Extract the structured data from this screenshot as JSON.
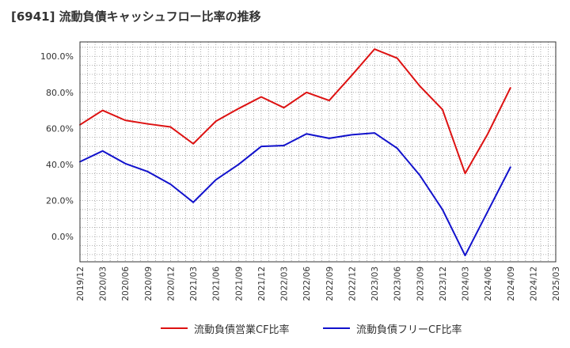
{
  "chart_data": {
    "type": "line",
    "title": "[6941]  流動負債キャッシュフロー比率の推移",
    "x": [
      "2019/12",
      "2020/03",
      "2020/06",
      "2020/09",
      "2020/12",
      "2021/03",
      "2021/06",
      "2021/09",
      "2021/12",
      "2022/03",
      "2022/06",
      "2022/09",
      "2022/12",
      "2023/03",
      "2023/06",
      "2023/09",
      "2023/12",
      "2024/03",
      "2024/06",
      "2024/09",
      "2024/12",
      "2025/03"
    ],
    "y_ticks": [
      "100.0%",
      "80.0%",
      "60.0%",
      "40.0%",
      "20.0%",
      "0.0%"
    ],
    "ylim": [
      -14,
      108
    ],
    "grid": true,
    "legend_position": "bottom",
    "series": [
      {
        "name": "流動負債営業CF比率",
        "color": "#dd1111",
        "values": [
          62,
          70,
          64.5,
          62.5,
          60.8,
          51.5,
          64,
          71,
          77.5,
          71.5,
          80,
          75.5,
          89.5,
          104,
          99,
          83.5,
          70.5,
          35,
          57,
          82.5,
          null,
          null
        ]
      },
      {
        "name": "流動負債フリーCF比率",
        "color": "#1111cc",
        "values": [
          41.5,
          47.5,
          40.5,
          36,
          29,
          19,
          31.5,
          40,
          50,
          50.5,
          57,
          54.5,
          56.5,
          57.5,
          49,
          34,
          15,
          -10.5,
          14,
          38.5,
          null,
          null
        ]
      }
    ]
  }
}
